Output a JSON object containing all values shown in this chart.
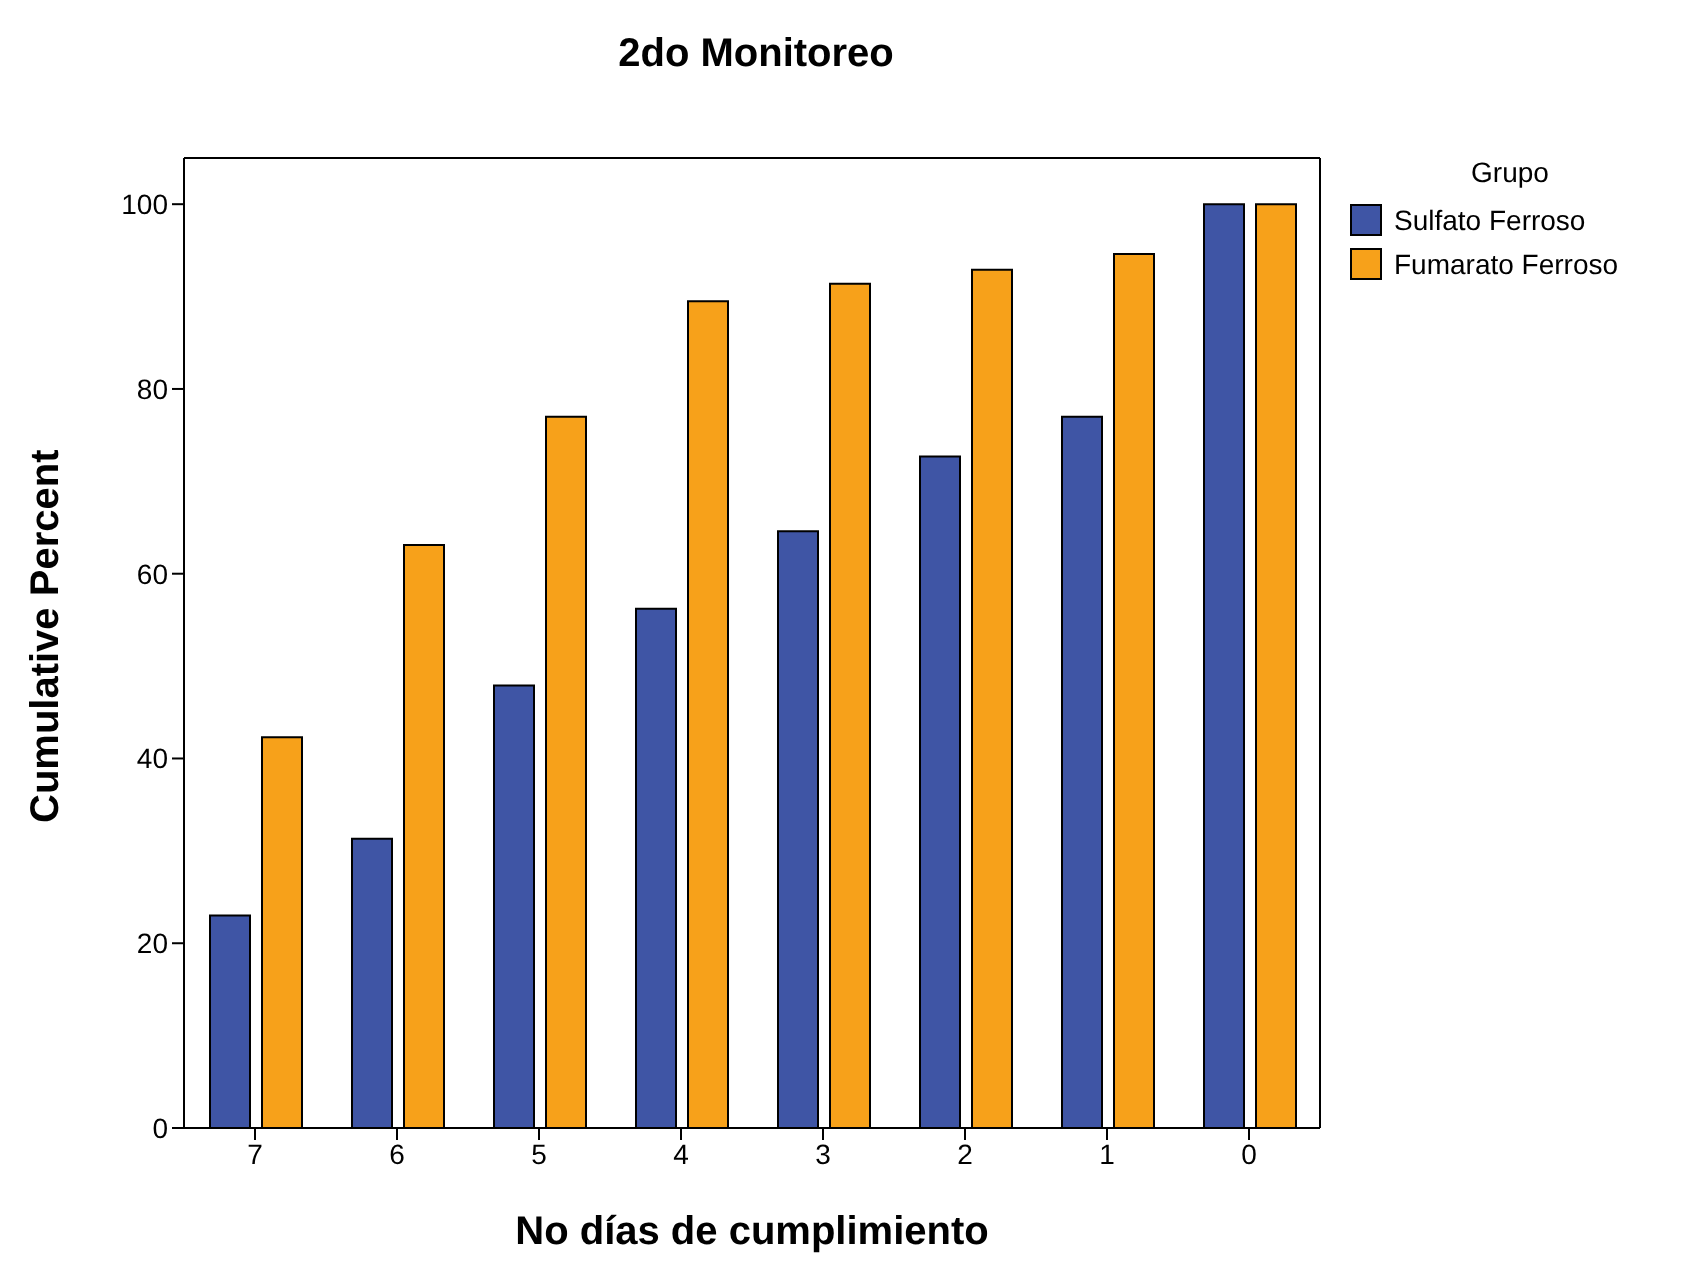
{
  "chart_data": {
    "type": "bar",
    "title": "2do Monitoreo",
    "xlabel": "No días de cumplimiento",
    "ylabel": "Cumulative Percent",
    "legend_title": "Grupo",
    "categories": [
      "7",
      "6",
      "5",
      "4",
      "3",
      "2",
      "1",
      "0"
    ],
    "series": [
      {
        "name": "Sulfato Ferroso",
        "color": "#3f55a5",
        "values": [
          23.0,
          31.3,
          47.9,
          56.2,
          64.6,
          72.7,
          77.0,
          100
        ]
      },
      {
        "name": "Fumarato Ferroso",
        "color": "#f7a11a",
        "values": [
          42.3,
          63.1,
          77.0,
          89.5,
          91.4,
          92.9,
          94.6,
          100
        ]
      }
    ],
    "ylim": [
      0,
      105
    ],
    "yticks": [
      0,
      20,
      40,
      60,
      80,
      100
    ],
    "grid": false,
    "legend": "right"
  }
}
